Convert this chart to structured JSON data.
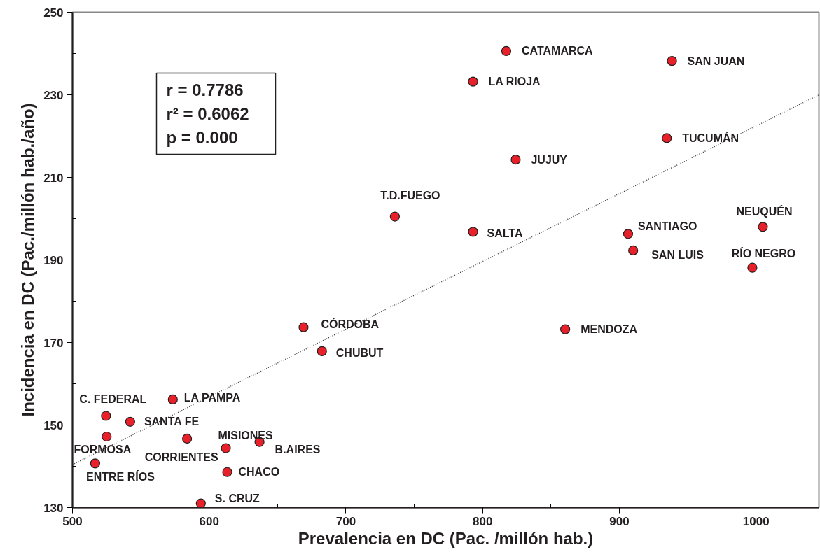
{
  "chart_data": {
    "type": "scatter",
    "xlabel": "Prevalencia en DC (Pac. /millón hab.)",
    "ylabel": "Incidencia en DC (Pac./millón hab./año)",
    "xlim": [
      500,
      1046
    ],
    "xticks": [
      500,
      600,
      700,
      800,
      900,
      1000
    ],
    "ylim": [
      130,
      250
    ],
    "yticks": [
      130,
      150,
      170,
      190,
      210,
      230,
      250
    ],
    "grid": false,
    "marker": "circle",
    "series": [
      {
        "color": "#e8202a",
        "x": [
          817.3,
          938.5,
          793.0,
          934.7,
          824.2,
          793.0,
          906.4,
          910.1,
          1005.0,
          997.3,
          735.8,
          860.4,
          669.0,
          682.5,
          573.4,
          524.5,
          542.2,
          525.0,
          583.8,
          612.2,
          636.8,
          516.6,
          613.2,
          593.9
        ],
        "values": [
          240.6,
          238.2,
          233.2,
          219.5,
          214.3,
          196.8,
          196.3,
          192.3,
          198.0,
          188.1,
          200.5,
          173.2,
          173.7,
          167.9,
          156.2,
          152.2,
          150.8,
          147.2,
          146.7,
          144.4,
          145.9,
          140.7,
          138.6,
          131.0
        ]
      },
      {
        "type": "line",
        "color": "#333333",
        "line_style": "dotted",
        "marker": "none",
        "x": [
          500,
          1046
        ],
        "values": [
          140.4,
          230.0
        ]
      }
    ],
    "annotations": [
      {
        "text": "CATAMARCA",
        "x": 817.3,
        "y": 240.6
      },
      {
        "text": "SAN JUAN",
        "x": 938.5,
        "y": 238.2
      },
      {
        "text": "LA RIOJA",
        "x": 793.0,
        "y": 233.2
      },
      {
        "text": "TUCUMÁN",
        "x": 934.7,
        "y": 219.5
      },
      {
        "text": "JUJUY",
        "x": 824.2,
        "y": 214.3
      },
      {
        "text": "SALTA",
        "x": 793.0,
        "y": 196.8
      },
      {
        "text": "SANTIAGO",
        "x": 906.4,
        "y": 196.3
      },
      {
        "text": "SAN LUIS",
        "x": 910.1,
        "y": 192.3
      },
      {
        "text": "NEUQUÉN",
        "x": 1005.0,
        "y": 198.0
      },
      {
        "text": "RÍO NEGRO",
        "x": 997.3,
        "y": 188.1
      },
      {
        "text": "T.D.FUEGO",
        "x": 735.8,
        "y": 200.5
      },
      {
        "text": "MENDOZA",
        "x": 860.4,
        "y": 173.2
      },
      {
        "text": "CÓRDOBA",
        "x": 669.0,
        "y": 173.7
      },
      {
        "text": "CHUBUT",
        "x": 682.5,
        "y": 167.9
      },
      {
        "text": "LA PAMPA",
        "x": 573.4,
        "y": 156.2
      },
      {
        "text": "C. FEDERAL",
        "x": 524.5,
        "y": 152.2
      },
      {
        "text": "SANTA FE",
        "x": 542.2,
        "y": 150.8
      },
      {
        "text": "FORMOSA",
        "x": 525.0,
        "y": 147.2
      },
      {
        "text": "CORRIENTES",
        "x": 583.8,
        "y": 146.7
      },
      {
        "text": "MISIONES",
        "x": 612.2,
        "y": 144.4
      },
      {
        "text": "B.AIRES",
        "x": 636.8,
        "y": 145.9
      },
      {
        "text": "ENTRE RÍOS",
        "x": 516.6,
        "y": 140.7
      },
      {
        "text": "CHACO",
        "x": 613.2,
        "y": 138.6
      },
      {
        "text": "S. CRUZ",
        "x": 593.9,
        "y": 131.0
      },
      "r = 0.7786",
      "r² = 0.6062",
      "p = 0.000"
    ]
  }
}
